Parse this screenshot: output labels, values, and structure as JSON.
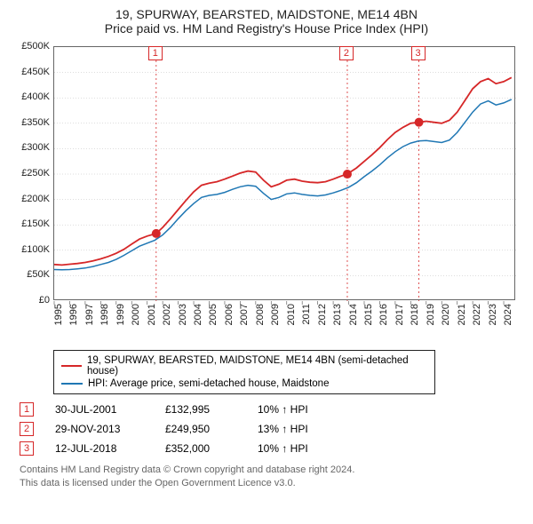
{
  "title": "19, SPURWAY, BEARSTED, MAIDSTONE, ME14 4BN",
  "subtitle": "Price paid vs. HM Land Registry's House Price Index (HPI)",
  "chart": {
    "type": "line",
    "background_color": "#ffffff",
    "axis_color": "#666666",
    "grid_color": "#bbbbbb",
    "xlim": [
      1995,
      2024.8
    ],
    "ylim": [
      0,
      500000
    ],
    "ytick_step": 50000,
    "yticks": [
      "£0",
      "£50K",
      "£100K",
      "£150K",
      "£200K",
      "£250K",
      "£300K",
      "£350K",
      "£400K",
      "£450K",
      "£500K"
    ],
    "xticks": [
      1995,
      1996,
      1997,
      1998,
      1999,
      2000,
      2001,
      2002,
      2003,
      2004,
      2005,
      2006,
      2007,
      2008,
      2009,
      2010,
      2011,
      2012,
      2013,
      2014,
      2015,
      2016,
      2017,
      2018,
      2019,
      2020,
      2021,
      2022,
      2023,
      2024
    ],
    "axis_fontsize": 11,
    "series": [
      {
        "name": "property",
        "label": "19, SPURWAY, BEARSTED, MAIDSTONE, ME14 4BN (semi-detached house)",
        "color": "#d62728",
        "line_width": 1.8,
        "data": [
          [
            1995,
            72000
          ],
          [
            1995.5,
            71000
          ],
          [
            1996,
            72500
          ],
          [
            1996.5,
            74000
          ],
          [
            1997,
            76000
          ],
          [
            1997.5,
            79000
          ],
          [
            1998,
            83000
          ],
          [
            1998.5,
            88000
          ],
          [
            1999,
            94000
          ],
          [
            1999.5,
            102000
          ],
          [
            2000,
            112000
          ],
          [
            2000.5,
            122000
          ],
          [
            2001,
            128000
          ],
          [
            2001.58,
            132995
          ],
          [
            2002,
            145000
          ],
          [
            2002.5,
            162000
          ],
          [
            2003,
            180000
          ],
          [
            2003.5,
            198000
          ],
          [
            2004,
            215000
          ],
          [
            2004.5,
            228000
          ],
          [
            2005,
            232000
          ],
          [
            2005.5,
            235000
          ],
          [
            2006,
            240000
          ],
          [
            2006.5,
            246000
          ],
          [
            2007,
            252000
          ],
          [
            2007.5,
            256000
          ],
          [
            2008,
            254000
          ],
          [
            2008.5,
            238000
          ],
          [
            2009,
            225000
          ],
          [
            2009.5,
            230000
          ],
          [
            2010,
            238000
          ],
          [
            2010.5,
            240000
          ],
          [
            2011,
            236000
          ],
          [
            2011.5,
            234000
          ],
          [
            2012,
            233000
          ],
          [
            2012.5,
            235000
          ],
          [
            2013,
            240000
          ],
          [
            2013.5,
            246000
          ],
          [
            2013.91,
            249950
          ],
          [
            2014,
            252000
          ],
          [
            2014.5,
            262000
          ],
          [
            2015,
            275000
          ],
          [
            2015.5,
            288000
          ],
          [
            2016,
            302000
          ],
          [
            2016.5,
            318000
          ],
          [
            2017,
            332000
          ],
          [
            2017.5,
            342000
          ],
          [
            2018,
            350000
          ],
          [
            2018.53,
            352000
          ],
          [
            2019,
            354000
          ],
          [
            2019.5,
            352000
          ],
          [
            2020,
            350000
          ],
          [
            2020.5,
            356000
          ],
          [
            2021,
            372000
          ],
          [
            2021.5,
            395000
          ],
          [
            2022,
            418000
          ],
          [
            2022.5,
            432000
          ],
          [
            2023,
            438000
          ],
          [
            2023.5,
            428000
          ],
          [
            2024,
            432000
          ],
          [
            2024.5,
            440000
          ]
        ]
      },
      {
        "name": "hpi",
        "label": "HPI: Average price, semi-detached house, Maidstone",
        "color": "#1f77b4",
        "line_width": 1.5,
        "data": [
          [
            1995,
            62000
          ],
          [
            1995.5,
            61500
          ],
          [
            1996,
            62000
          ],
          [
            1996.5,
            63500
          ],
          [
            1997,
            65000
          ],
          [
            1997.5,
            68000
          ],
          [
            1998,
            72000
          ],
          [
            1998.5,
            76000
          ],
          [
            1999,
            82000
          ],
          [
            1999.5,
            90000
          ],
          [
            2000,
            99000
          ],
          [
            2000.5,
            108000
          ],
          [
            2001,
            114000
          ],
          [
            2001.5,
            120000
          ],
          [
            2002,
            130000
          ],
          [
            2002.5,
            145000
          ],
          [
            2003,
            162000
          ],
          [
            2003.5,
            178000
          ],
          [
            2004,
            192000
          ],
          [
            2004.5,
            204000
          ],
          [
            2005,
            208000
          ],
          [
            2005.5,
            210000
          ],
          [
            2006,
            214000
          ],
          [
            2006.5,
            220000
          ],
          [
            2007,
            225000
          ],
          [
            2007.5,
            228000
          ],
          [
            2008,
            226000
          ],
          [
            2008.5,
            212000
          ],
          [
            2009,
            200000
          ],
          [
            2009.5,
            204000
          ],
          [
            2010,
            211000
          ],
          [
            2010.5,
            213000
          ],
          [
            2011,
            210000
          ],
          [
            2011.5,
            208000
          ],
          [
            2012,
            207000
          ],
          [
            2012.5,
            209000
          ],
          [
            2013,
            213000
          ],
          [
            2013.5,
            218000
          ],
          [
            2014,
            224000
          ],
          [
            2014.5,
            233000
          ],
          [
            2015,
            245000
          ],
          [
            2015.5,
            256000
          ],
          [
            2016,
            268000
          ],
          [
            2016.5,
            282000
          ],
          [
            2017,
            294000
          ],
          [
            2017.5,
            304000
          ],
          [
            2018,
            311000
          ],
          [
            2018.5,
            315000
          ],
          [
            2019,
            316000
          ],
          [
            2019.5,
            314000
          ],
          [
            2020,
            312000
          ],
          [
            2020.5,
            317000
          ],
          [
            2021,
            332000
          ],
          [
            2021.5,
            352000
          ],
          [
            2022,
            372000
          ],
          [
            2022.5,
            388000
          ],
          [
            2023,
            394000
          ],
          [
            2023.5,
            386000
          ],
          [
            2024,
            390000
          ],
          [
            2024.5,
            397000
          ]
        ]
      }
    ],
    "sale_markers": [
      {
        "n": 1,
        "x": 2001.58,
        "y": 132995,
        "color": "#d62728",
        "vline_color": "#d62728"
      },
      {
        "n": 2,
        "x": 2013.91,
        "y": 249950,
        "color": "#d62728",
        "vline_color": "#d62728"
      },
      {
        "n": 3,
        "x": 2018.53,
        "y": 352000,
        "color": "#d62728",
        "vline_color": "#d62728"
      }
    ],
    "marker_radius": 5,
    "marker_box_border": "#d62728",
    "vline_dash": "2,3"
  },
  "legend": {
    "items": [
      {
        "color": "#d62728",
        "label": "19, SPURWAY, BEARSTED, MAIDSTONE, ME14 4BN (semi-detached house)"
      },
      {
        "color": "#1f77b4",
        "label": "HPI: Average price, semi-detached house, Maidstone"
      }
    ]
  },
  "sales": [
    {
      "n": "1",
      "date": "30-JUL-2001",
      "price": "£132,995",
      "pct": "10% ↑ HPI",
      "box_color": "#d62728"
    },
    {
      "n": "2",
      "date": "29-NOV-2013",
      "price": "£249,950",
      "pct": "13% ↑ HPI",
      "box_color": "#d62728"
    },
    {
      "n": "3",
      "date": "12-JUL-2018",
      "price": "£352,000",
      "pct": "10% ↑ HPI",
      "box_color": "#d62728"
    }
  ],
  "attribution": {
    "line1": "Contains HM Land Registry data © Crown copyright and database right 2024.",
    "line2": "This data is licensed under the Open Government Licence v3.0."
  }
}
